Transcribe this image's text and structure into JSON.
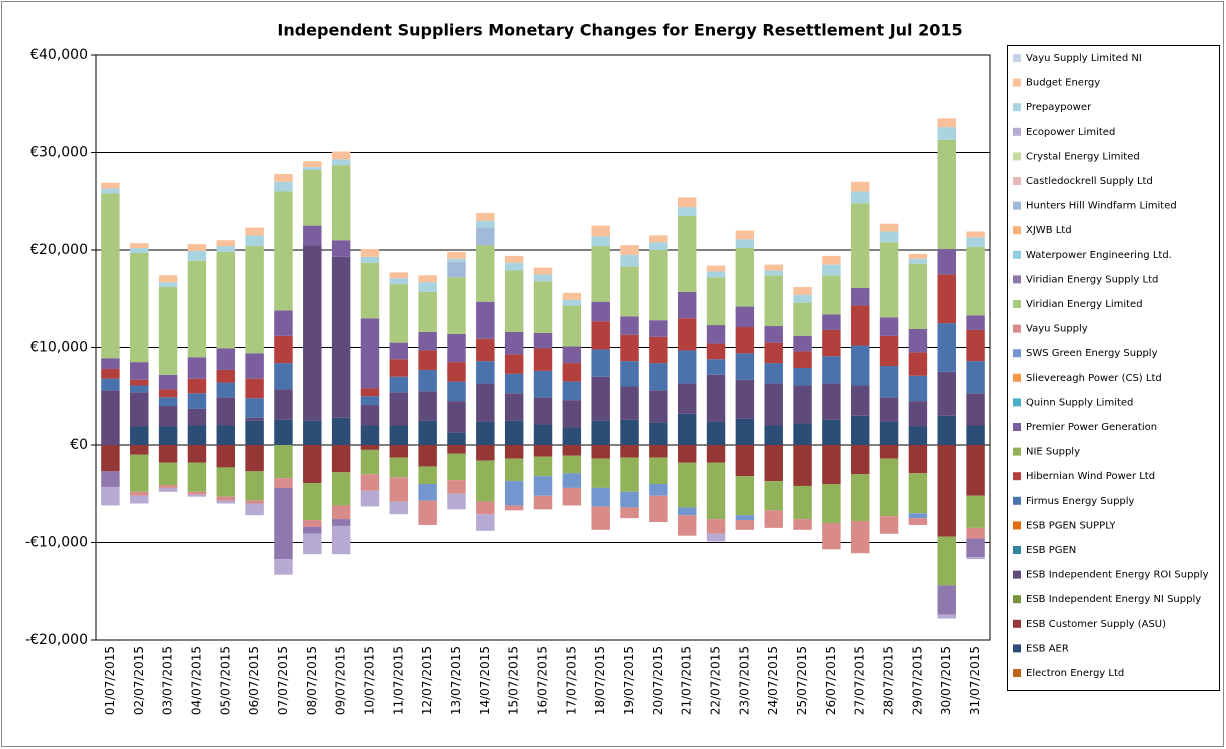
{
  "chart_data": {
    "type": "stacked-bar",
    "title": "Independent Suppliers Monetary Changes  for Energy Resettlement  Jul 2015",
    "categories": [
      "01/07/2015",
      "02/07/2015",
      "03/07/2015",
      "04/07/2015",
      "05/07/2015",
      "06/07/2015",
      "07/07/2015",
      "08/07/2015",
      "09/07/2015",
      "10/07/2015",
      "11/07/2015",
      "12/07/2015",
      "13/07/2015",
      "14/07/2015",
      "15/07/2015",
      "16/07/2015",
      "17/07/2015",
      "18/07/2015",
      "19/07/2015",
      "20/07/2015",
      "21/07/2015",
      "22/07/2015",
      "23/07/2015",
      "24/07/2015",
      "25/07/2015",
      "26/07/2015",
      "27/07/2015",
      "28/07/2015",
      "29/07/2015",
      "30/07/2015",
      "31/07/2015"
    ],
    "ylim": [
      -20000,
      40000
    ],
    "yticks": [
      {
        "value": -20000,
        "label": "-€20,000"
      },
      {
        "value": -10000,
        "label": "-€10,000"
      },
      {
        "value": 0,
        "label": "€0"
      },
      {
        "value": 10000,
        "label": "€10,000"
      },
      {
        "value": 20000,
        "label": "€20,000"
      },
      {
        "value": 30000,
        "label": "€30,000"
      },
      {
        "value": 40000,
        "label": "€40,000"
      }
    ],
    "grid": true,
    "legend": "right",
    "series": [
      {
        "name": "Electron Energy Ltd",
        "color": "#c0651c",
        "values": [
          0,
          0,
          0,
          0,
          0,
          0,
          0,
          0,
          0,
          0,
          0,
          0,
          0,
          0,
          0,
          0,
          0,
          0,
          0,
          0,
          0,
          0,
          0,
          0,
          0,
          0,
          0,
          0,
          0,
          0,
          0
        ]
      },
      {
        "name": "ESB AER",
        "color": "#2c4d75",
        "values": [
          0,
          1900,
          1900,
          2000,
          2000,
          2500,
          2600,
          2500,
          2800,
          2000,
          2000,
          2500,
          1300,
          2400,
          2500,
          2100,
          1800,
          2500,
          2600,
          2300,
          3200,
          2400,
          2700,
          2000,
          2200,
          2600,
          3000,
          2400,
          1900,
          3000,
          2000
        ]
      },
      {
        "name": "ESB Customer Supply (ASU)",
        "color": "#953735",
        "values": [
          -2700,
          -1000,
          -1800,
          -1800,
          -2300,
          -2700,
          0,
          -3900,
          -2800,
          -500,
          -1300,
          -2200,
          -900,
          -1600,
          -1400,
          -1200,
          -1100,
          -1400,
          -1300,
          -1300,
          -1800,
          -1800,
          -3200,
          -3700,
          -4200,
          -4000,
          -3000,
          -1400,
          -2900,
          -9400,
          -5200
        ]
      },
      {
        "name": "ESB Independent Energy NI Supply",
        "color": "#77933c",
        "values": [
          0,
          0,
          0,
          0,
          0,
          0,
          0,
          0,
          0,
          0,
          0,
          0,
          0,
          0,
          0,
          0,
          0,
          0,
          0,
          0,
          0,
          0,
          0,
          0,
          0,
          0,
          0,
          0,
          0,
          0,
          0
        ]
      },
      {
        "name": "ESB Independent Energy ROI Supply",
        "color": "#5f4a7b",
        "values": [
          5600,
          3500,
          2100,
          1700,
          2900,
          300,
          3100,
          18000,
          16500,
          2100,
          3400,
          3000,
          3200,
          3900,
          2800,
          2800,
          2800,
          4500,
          3400,
          3300,
          3100,
          4800,
          4000,
          4300,
          3900,
          3700,
          3100,
          2500,
          2600,
          4500,
          3300
        ]
      },
      {
        "name": "ESB PGEN",
        "color": "#31859c",
        "values": [
          0,
          0,
          0,
          0,
          0,
          0,
          0,
          0,
          0,
          0,
          0,
          0,
          0,
          0,
          0,
          0,
          0,
          0,
          0,
          0,
          0,
          0,
          0,
          0,
          0,
          0,
          0,
          0,
          0,
          0,
          0
        ]
      },
      {
        "name": "ESB PGEN SUPPLY",
        "color": "#e46c0a",
        "values": [
          0,
          0,
          0,
          0,
          0,
          0,
          0,
          0,
          0,
          0,
          0,
          0,
          0,
          0,
          0,
          0,
          0,
          0,
          0,
          0,
          0,
          0,
          0,
          0,
          0,
          0,
          0,
          0,
          0,
          0,
          0
        ]
      },
      {
        "name": "Firmus Energy Supply",
        "color": "#4a72ad",
        "values": [
          1200,
          700,
          900,
          1600,
          1500,
          2000,
          2700,
          0,
          0,
          900,
          1600,
          2200,
          2000,
          2300,
          2000,
          2700,
          1900,
          2800,
          2600,
          2800,
          3400,
          1600,
          2700,
          2100,
          1800,
          2800,
          4100,
          3200,
          2600,
          5000,
          3300
        ]
      },
      {
        "name": "Hibernian Wind Power Ltd",
        "color": "#b3403d",
        "values": [
          1000,
          600,
          800,
          1500,
          1300,
          2000,
          2800,
          0,
          0,
          800,
          1800,
          2000,
          2000,
          2300,
          2000,
          2300,
          1900,
          2900,
          2700,
          2700,
          3300,
          1600,
          2700,
          2100,
          1700,
          2700,
          4100,
          3100,
          2400,
          5000,
          3200
        ]
      },
      {
        "name": "NIE Supply",
        "color": "#92b25a",
        "values": [
          0,
          -3800,
          -2300,
          -3000,
          -3000,
          -3000,
          -3400,
          -3800,
          -3400,
          -2500,
          -2000,
          -1800,
          -2700,
          -4200,
          -2300,
          -2000,
          -1800,
          -3000,
          -3500,
          -2700,
          -4600,
          -5800,
          -4000,
          -3000,
          -3400,
          -4000,
          -4800,
          -5900,
          -4100,
          -5000,
          -3300
        ]
      },
      {
        "name": "Premier Power Generation",
        "color": "#7a5e9e",
        "values": [
          1100,
          1800,
          1500,
          2200,
          2200,
          2600,
          2600,
          2000,
          1700,
          7200,
          1700,
          1900,
          2900,
          3800,
          2300,
          1600,
          1700,
          2000,
          1900,
          1700,
          2700,
          1900,
          2100,
          1700,
          1600,
          1600,
          1800,
          1900,
          2400,
          2600,
          1500
        ]
      },
      {
        "name": "Quinn Supply Limited",
        "color": "#4bacc6",
        "values": [
          0,
          0,
          0,
          0,
          0,
          0,
          0,
          0,
          0,
          0,
          0,
          0,
          0,
          0,
          0,
          0,
          0,
          0,
          0,
          0,
          0,
          0,
          0,
          0,
          0,
          0,
          0,
          0,
          0,
          0,
          0
        ]
      },
      {
        "name": "Slievereagh Power (CS) Ltd",
        "color": "#f79646",
        "values": [
          0,
          0,
          0,
          0,
          0,
          0,
          0,
          0,
          0,
          0,
          0,
          0,
          0,
          0,
          0,
          0,
          0,
          0,
          0,
          0,
          0,
          0,
          0,
          0,
          0,
          0,
          0,
          0,
          0,
          0,
          0
        ]
      },
      {
        "name": "SWS Green Energy Supply",
        "color": "#7297cf",
        "values": [
          0,
          0,
          0,
          0,
          0,
          0,
          0,
          0,
          0,
          0,
          0,
          -1700,
          0,
          0,
          -2500,
          -2000,
          -1500,
          -1900,
          -1600,
          -1200,
          -800,
          0,
          -500,
          0,
          0,
          0,
          0,
          0,
          -500,
          0,
          0
        ]
      },
      {
        "name": "Vayu Supply",
        "color": "#d98b89",
        "values": [
          0,
          -400,
          -300,
          -300,
          -400,
          -300,
          -1000,
          -700,
          -1400,
          -1700,
          -2500,
          -2500,
          -1400,
          -1300,
          -500,
          -1400,
          -1800,
          -2400,
          -1100,
          -2700,
          -2100,
          -1500,
          -1000,
          -1800,
          -1100,
          -2700,
          -3300,
          -1800,
          -700,
          0,
          -1100
        ]
      },
      {
        "name": "Viridian Energy Limited",
        "color": "#aac87e",
        "values": [
          16900,
          11200,
          9000,
          9900,
          9900,
          11000,
          12200,
          5700,
          7700,
          5700,
          6000,
          4100,
          5800,
          5800,
          6300,
          5300,
          4200,
          5700,
          5100,
          7200,
          7800,
          4900,
          6000,
          5200,
          3400,
          4000,
          8700,
          7700,
          6700,
          11200,
          7000
        ]
      },
      {
        "name": "Viridian Energy Supply Ltd",
        "color": "#8f78ae",
        "values": [
          -1600,
          0,
          0,
          0,
          0,
          0,
          -7300,
          -700,
          -700,
          0,
          0,
          0,
          0,
          0,
          0,
          0,
          0,
          0,
          0,
          0,
          0,
          0,
          0,
          0,
          0,
          0,
          0,
          0,
          0,
          -3000,
          -1900
        ]
      },
      {
        "name": "Waterpower Engineering Ltd.",
        "color": "#93cddd",
        "values": [
          0,
          0,
          0,
          0,
          0,
          0,
          0,
          0,
          0,
          0,
          0,
          0,
          0,
          0,
          0,
          0,
          0,
          0,
          0,
          0,
          0,
          0,
          0,
          0,
          0,
          0,
          0,
          0,
          0,
          0,
          0
        ]
      },
      {
        "name": "XJWB Ltd",
        "color": "#fab07a",
        "values": [
          0,
          0,
          0,
          0,
          0,
          0,
          0,
          0,
          0,
          0,
          0,
          0,
          0,
          0,
          0,
          0,
          0,
          0,
          0,
          0,
          0,
          0,
          0,
          0,
          0,
          0,
          0,
          0,
          0,
          0,
          0
        ]
      },
      {
        "name": "Hunters Hill Windfarm Limited",
        "color": "#a3b9da",
        "values": [
          0,
          0,
          0,
          0,
          0,
          0,
          0,
          0,
          0,
          0,
          0,
          0,
          1600,
          1800,
          0,
          0,
          0,
          0,
          0,
          0,
          0,
          0,
          0,
          0,
          0,
          0,
          0,
          0,
          0,
          0,
          0
        ]
      },
      {
        "name": "Castledockrell Supply Ltd",
        "color": "#e6b9b8",
        "values": [
          0,
          0,
          0,
          0,
          0,
          0,
          0,
          0,
          0,
          0,
          0,
          0,
          0,
          0,
          0,
          0,
          0,
          0,
          0,
          0,
          0,
          0,
          0,
          0,
          0,
          0,
          0,
          0,
          0,
          0,
          0
        ]
      },
      {
        "name": "Crystal Energy Limited",
        "color": "#c6da9e",
        "values": [
          0,
          0,
          0,
          0,
          0,
          0,
          0,
          0,
          0,
          0,
          0,
          0,
          0,
          0,
          0,
          0,
          0,
          0,
          0,
          0,
          0,
          0,
          0,
          0,
          0,
          0,
          0,
          0,
          0,
          0,
          0
        ]
      },
      {
        "name": "Ecopower Limited",
        "color": "#b7aad2",
        "values": [
          -1900,
          -800,
          -400,
          -200,
          -300,
          -1200,
          -1600,
          -2100,
          -2900,
          -1600,
          -1300,
          0,
          -1600,
          -1700,
          0,
          0,
          0,
          0,
          0,
          0,
          0,
          -800,
          0,
          0,
          0,
          0,
          0,
          0,
          0,
          -400,
          -200
        ]
      },
      {
        "name": "Prepaypower",
        "color": "#a9d3df",
        "values": [
          500,
          500,
          500,
          1000,
          600,
          1100,
          1000,
          300,
          600,
          600,
          600,
          1000,
          300,
          700,
          800,
          700,
          600,
          1000,
          1200,
          800,
          900,
          600,
          900,
          500,
          800,
          1100,
          1200,
          1100,
          500,
          1300,
          1000
        ]
      },
      {
        "name": "Budget Energy",
        "color": "#f9c09a",
        "values": [
          600,
          500,
          700,
          700,
          600,
          800,
          800,
          600,
          800,
          800,
          600,
          700,
          700,
          800,
          700,
          700,
          700,
          1100,
          1000,
          700,
          1000,
          600,
          900,
          600,
          800,
          900,
          1000,
          800,
          500,
          900,
          600
        ]
      },
      {
        "name": "Vayu Supply Limited NI",
        "color": "#c5d3e8",
        "values": [
          0,
          0,
          0,
          0,
          0,
          0,
          0,
          0,
          0,
          0,
          0,
          0,
          0,
          0,
          0,
          0,
          0,
          0,
          0,
          0,
          0,
          0,
          0,
          0,
          0,
          0,
          0,
          0,
          0,
          0,
          0
        ]
      }
    ]
  }
}
